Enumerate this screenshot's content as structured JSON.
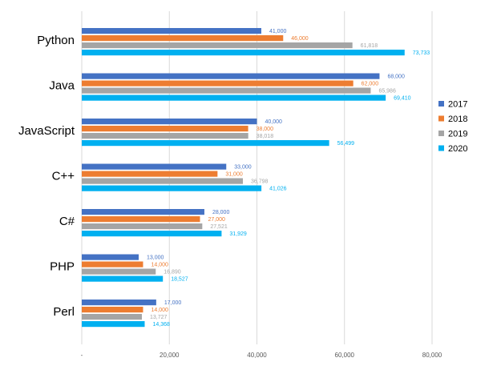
{
  "chart_data": {
    "type": "bar",
    "orientation": "horizontal",
    "categories": [
      "Python",
      "Java",
      "JavaScript",
      "C++",
      "C#",
      "PHP",
      "Perl"
    ],
    "series": [
      {
        "name": "2017",
        "color": "#4472C4",
        "values": [
          41000,
          68000,
          40000,
          33000,
          28000,
          13000,
          17000
        ],
        "labels": [
          "41,000",
          "68,000",
          "40,000",
          "33,000",
          "28,000",
          "13,000",
          "17,000"
        ]
      },
      {
        "name": "2018",
        "color": "#ED7D31",
        "values": [
          46000,
          62000,
          38000,
          31000,
          27000,
          14000,
          14000
        ],
        "labels": [
          "46,000",
          "62,000",
          "38,000",
          "31,000",
          "27,000",
          "14,000",
          "14,000"
        ]
      },
      {
        "name": "2019",
        "color": "#A5A5A5",
        "values": [
          61818,
          65986,
          38018,
          36798,
          27521,
          16890,
          13727
        ],
        "labels": [
          "61,818",
          "65,986",
          "38,018",
          "36,798",
          "27,521",
          "16,890",
          "13,727"
        ]
      },
      {
        "name": "2020",
        "color": "#00B0F0",
        "values": [
          73733,
          69410,
          56499,
          41026,
          31929,
          18527,
          14368
        ],
        "labels": [
          "73,733",
          "69,410",
          "56,499",
          "41,026",
          "31,929",
          "18,527",
          "14,368"
        ]
      }
    ],
    "xlim": [
      0,
      80000
    ],
    "xticks": [
      0,
      20000,
      40000,
      60000,
      80000
    ],
    "xtick_labels": [
      "-",
      "20,000",
      "40,000",
      "60,000",
      "80,000"
    ],
    "grid": true,
    "legend": "right",
    "title": "",
    "xlabel": "",
    "ylabel": ""
  }
}
